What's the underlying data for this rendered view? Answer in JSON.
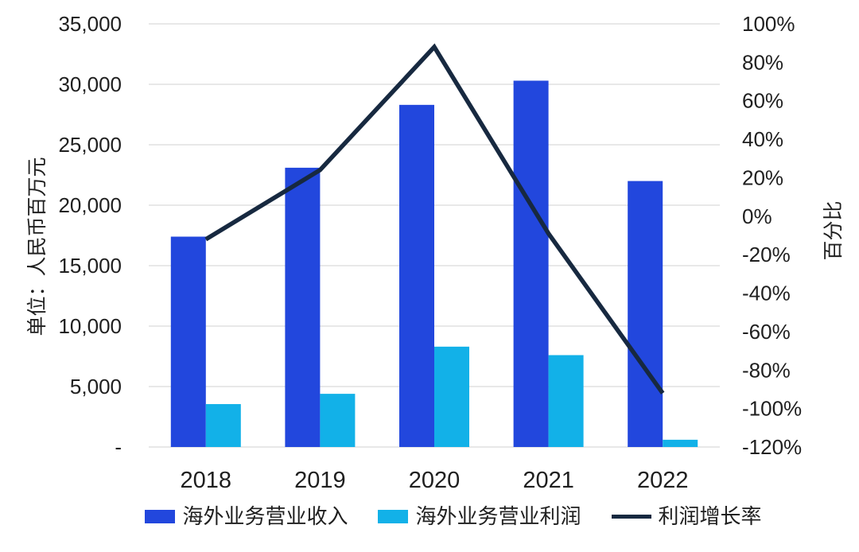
{
  "chart_data": {
    "type": "bar",
    "subtype": "bar-line-combo",
    "categories": [
      "2018",
      "2019",
      "2020",
      "2021",
      "2022"
    ],
    "series": [
      {
        "name": "海外业务营业收入",
        "type": "bar",
        "axis": "left",
        "color": "#2247DD",
        "values": [
          17400,
          23100,
          28300,
          30300,
          22000
        ]
      },
      {
        "name": "海外业务营业利润",
        "type": "bar",
        "axis": "left",
        "color": "#12B1E8",
        "values": [
          3550,
          4400,
          8300,
          7600,
          600
        ]
      },
      {
        "name": "利润增长率",
        "type": "line",
        "axis": "right",
        "color": "#172940",
        "values": [
          -12,
          24,
          88,
          -9,
          -92
        ]
      }
    ],
    "left_axis": {
      "title": "单位：人民币百万元",
      "min": 0,
      "max": 35000,
      "step": 5000,
      "tick_labels": [
        "35,000",
        "30,000",
        "25,000",
        "20,000",
        "15,000",
        "10,000",
        "5,000",
        "-"
      ]
    },
    "right_axis": {
      "title": "百分比",
      "min": -120,
      "max": 100,
      "step": 20,
      "tick_labels": [
        "100%",
        "80%",
        "60%",
        "40%",
        "20%",
        "0%",
        "-20%",
        "-40%",
        "-60%",
        "-80%",
        "-100%",
        "-120%"
      ]
    },
    "grid": "horizontal",
    "gridline_color": "#D9D9D9",
    "legend_position": "bottom"
  },
  "legend": {
    "items": [
      {
        "label": "海外业务营业收入",
        "swatch": "blue-rect"
      },
      {
        "label": "海外业务营业利润",
        "swatch": "cyan-rect"
      },
      {
        "label": "利润增长率",
        "swatch": "dark-line"
      }
    ]
  }
}
